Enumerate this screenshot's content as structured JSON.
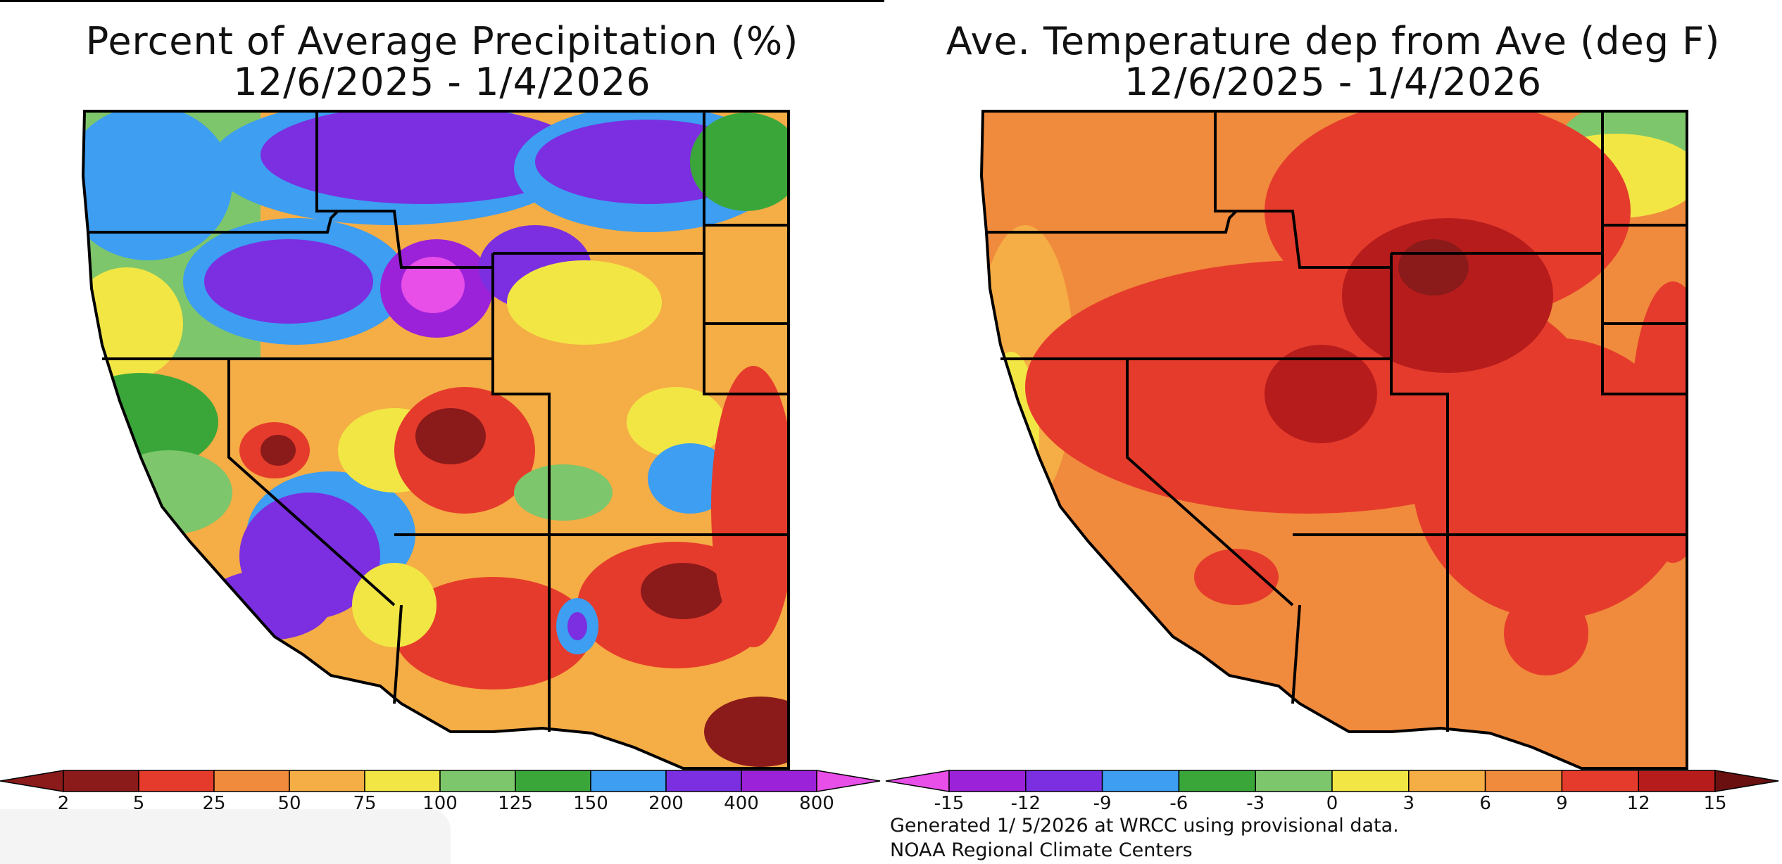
{
  "left_panel": {
    "title_line1": "Percent of Average Precipitation (%)",
    "title_line2": "12/6/2025 - 1/4/2026",
    "legend_labels": [
      "2",
      "5",
      "25",
      "50",
      "75",
      "100",
      "125",
      "150",
      "200",
      "400",
      "800"
    ],
    "legend_colors": [
      "#8b1a1a",
      "#e53b2c",
      "#f08a3c",
      "#f5ad45",
      "#f2e645",
      "#7ec66b",
      "#3aa63a",
      "#3d9ef2",
      "#7b2fe0",
      "#9b22d8"
    ],
    "arrow_left_color": "#8b1a1a",
    "arrow_right_color": "#e84ee8"
  },
  "right_panel": {
    "title_line1": "Ave. Temperature dep from Ave (deg F)",
    "title_line2": "12/6/2025 - 1/4/2026",
    "legend_labels": [
      "-15",
      "-12",
      "-9",
      "-6",
      "-3",
      "0",
      "3",
      "6",
      "9",
      "12",
      "15"
    ],
    "legend_colors": [
      "#9b22d8",
      "#7b2fe0",
      "#3d9ef2",
      "#3aa63a",
      "#7ec66b",
      "#f2e645",
      "#f5ad45",
      "#f08a3c",
      "#e53b2c",
      "#b71c1c"
    ],
    "arrow_left_color": "#e84ee8",
    "arrow_right_color": "#6b1010",
    "footer_line1": "Generated 1/ 5/2026 at WRCC using provisional data.",
    "footer_line2": "NOAA Regional Climate Centers"
  }
}
